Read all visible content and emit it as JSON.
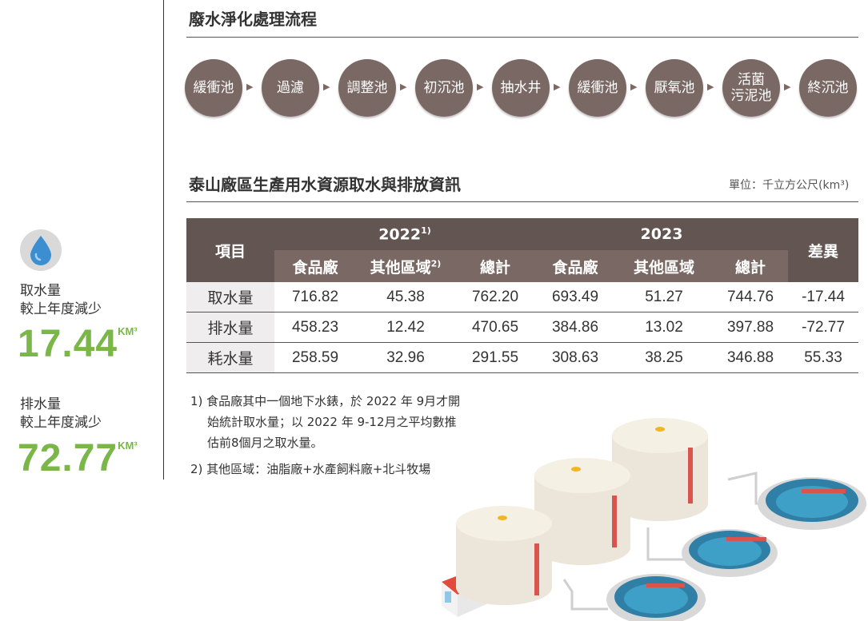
{
  "process": {
    "title": "廢水淨化處理流程",
    "steps": [
      "緩衝池",
      "過濾",
      "調整池",
      "初沉池",
      "抽水井",
      "緩衝池",
      "厭氧池",
      "活菌\n污泥池",
      "終沉池"
    ]
  },
  "table_section": {
    "title": "泰山廠區生產用水資源取水與排放資訊",
    "unit": "單位：千立方公尺(km³)"
  },
  "table": {
    "item_header": "項目",
    "diff_header": "差異",
    "year_2022": "2022",
    "year_2022_note": "1)",
    "year_2023": "2023",
    "subheaders": [
      "食品廠",
      "其他區域",
      "總計",
      "食品廠",
      "其他區域",
      "總計"
    ],
    "other_note": "2)",
    "rows": [
      {
        "label": "取水量",
        "values": [
          "716.82",
          "45.38",
          "762.20",
          "693.49",
          "51.27",
          "744.76",
          "-17.44"
        ]
      },
      {
        "label": "排水量",
        "values": [
          "458.23",
          "12.42",
          "470.65",
          "384.86",
          "13.02",
          "397.88",
          "-72.77"
        ]
      },
      {
        "label": "耗水量",
        "values": [
          "258.59",
          "32.96",
          "291.55",
          "308.63",
          "38.25",
          "346.88",
          "55.33"
        ]
      }
    ]
  },
  "notes": {
    "n1_line1": "1) 食品廠其中一個地下水錶，於 2022 年 9月才開",
    "n1_line2": "始統計取水量；以 2022 年 9-12月之平均數推",
    "n1_line3": "估前8個月之取水量。",
    "n2": "2) 其他區域：油脂廠+水產飼料廠+北斗牧場"
  },
  "stats": {
    "intake_label1": "取水量",
    "intake_label2": "較上年度減少",
    "intake_value": "17.44",
    "discharge_label1": "排水量",
    "discharge_label2": "較上年度減少",
    "discharge_value": "72.77",
    "unit": "KM³"
  },
  "colors": {
    "accent_green": "#7ab648",
    "header_brown": "#625552",
    "circle_brown": "#7a6864",
    "water_blue": "#3b8ed0"
  }
}
